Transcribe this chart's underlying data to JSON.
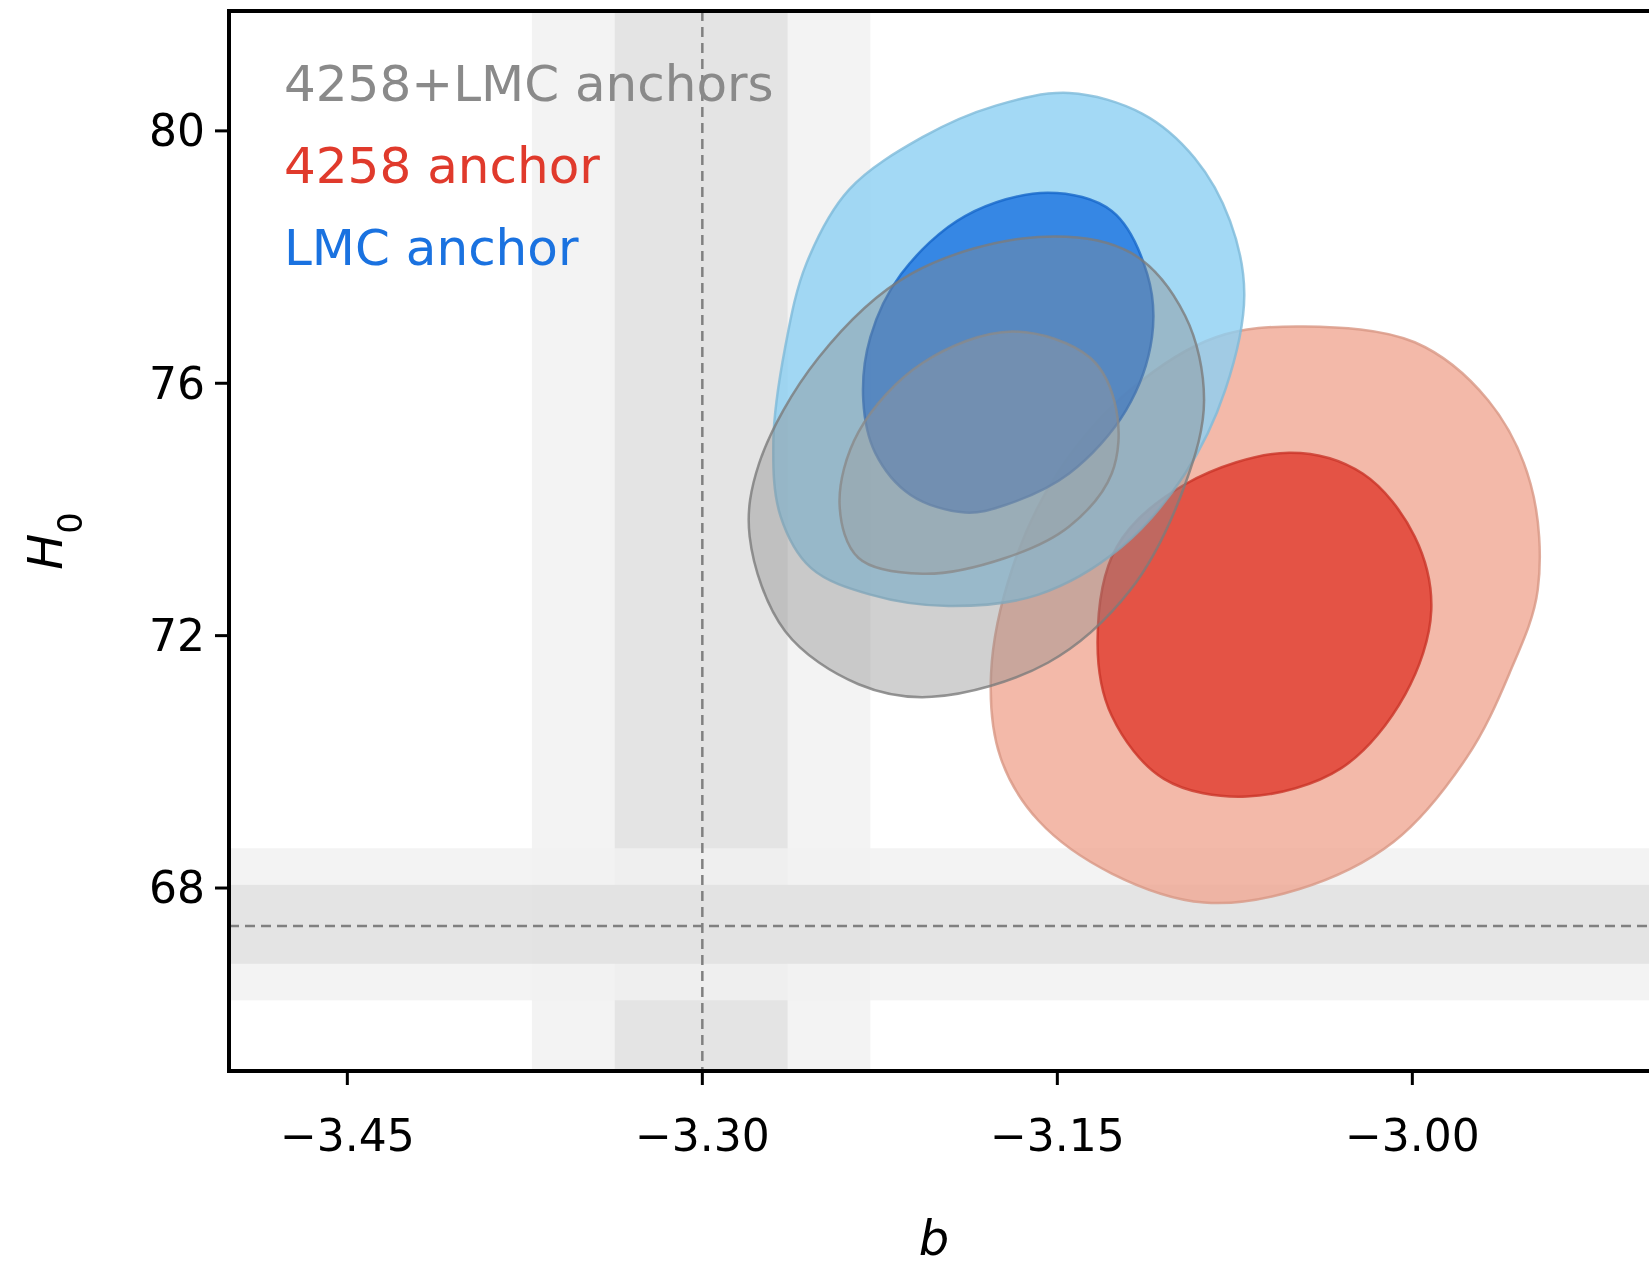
{
  "chart_data": {
    "type": "area",
    "xlabel": "b",
    "ylabel": "H$_{0}$",
    "xlim": [
      -3.5,
      -2.9
    ],
    "ylim": [
      65.1,
      81.9
    ],
    "xticks": [
      {
        "value": -3.45,
        "label": "−3.45"
      },
      {
        "value": -3.3,
        "label": "−3.30"
      },
      {
        "value": -3.15,
        "label": "−3.15"
      },
      {
        "value": -3.0,
        "label": "−3.00"
      }
    ],
    "yticks": [
      68,
      72,
      76,
      80
    ],
    "grid": false,
    "legend": "top left",
    "bands": [
      {
        "axis": "x",
        "from": -3.372,
        "to": -3.229,
        "color": "#f1f1f1"
      },
      {
        "axis": "x",
        "from": -3.337,
        "to": -3.264,
        "color": "#e0e0e0"
      },
      {
        "axis": "y",
        "from": 66.22,
        "to": 68.63,
        "color": "#f1f1f1"
      },
      {
        "axis": "y",
        "from": 66.8,
        "to": 68.05,
        "color": "#e0e0e0"
      }
    ],
    "ref_lines": [
      {
        "axis": "x",
        "value": -3.3,
        "color": "#808080",
        "line_style": "dashed"
      },
      {
        "axis": "y",
        "value": 67.4,
        "color": "#808080",
        "line_style": "dashed"
      }
    ],
    "series": [
      {
        "name": "4258+LMC anchors",
        "color": "#8a8a8a",
        "x": [
          -3.158,
          -3.119,
          -3.096,
          -3.088,
          -3.096,
          -3.119,
          -3.154,
          -3.203,
          -3.234,
          -3.265,
          -3.28,
          -3.276,
          -3.251,
          -3.212,
          -3.158
        ],
        "values": [
          78.32,
          78.07,
          77.07,
          75.73,
          74.4,
          72.73,
          71.57,
          71.03,
          71.23,
          72.07,
          73.57,
          74.73,
          76.4,
          77.73,
          78.32
        ]
      },
      {
        "color": "#9a9a9a",
        "x": [
          -3.169,
          -3.136,
          -3.125,
          -3.127,
          -3.145,
          -3.172,
          -3.207,
          -3.234,
          -3.242,
          -3.234,
          -3.207,
          -3.169
        ],
        "values": [
          76.82,
          76.4,
          75.57,
          74.57,
          73.73,
          73.23,
          72.98,
          73.23,
          74.07,
          75.23,
          76.32,
          76.82
        ]
      },
      {
        "color": "#f0a894",
        "x": [
          -3.046,
          -2.999,
          -2.968,
          -2.95,
          -2.947,
          -2.959,
          -2.977,
          -3.008,
          -3.048,
          -3.088,
          -3.127,
          -3.158,
          -3.174,
          -3.178,
          -3.169,
          -3.15,
          -3.119,
          -3.083,
          -3.046
        ],
        "values": [
          76.9,
          76.65,
          75.73,
          74.4,
          72.73,
          71.4,
          70.07,
          68.73,
          67.98,
          67.77,
          68.23,
          69.07,
          70.07,
          71.4,
          73.07,
          74.57,
          75.9,
          76.73,
          76.9
        ]
      },
      {
        "name": "4258 anchor",
        "color": "#e03a2c",
        "x": [
          -3.052,
          -3.021,
          -2.999,
          -2.992,
          -3.003,
          -3.03,
          -3.07,
          -3.105,
          -3.127,
          -3.133,
          -3.125,
          -3.096,
          -3.052
        ],
        "values": [
          74.9,
          74.57,
          73.57,
          72.4,
          71.07,
          69.9,
          69.45,
          69.73,
          70.73,
          71.9,
          73.4,
          74.4,
          74.9
        ]
      },
      {
        "color": "#8ccff2",
        "x": [
          -3.145,
          -3.176,
          -3.207,
          -3.238,
          -3.256,
          -3.265,
          -3.27,
          -3.267,
          -3.254,
          -3.229,
          -3.196,
          -3.158,
          -3.123,
          -3.096,
          -3.079,
          -3.071,
          -3.077,
          -3.092,
          -3.114,
          -3.145
        ],
        "values": [
          80.6,
          80.4,
          79.9,
          79.07,
          77.9,
          76.57,
          75.07,
          73.9,
          73.07,
          72.65,
          72.47,
          72.65,
          73.4,
          74.57,
          75.9,
          77.4,
          78.57,
          79.57,
          80.27,
          80.6
        ]
      },
      {
        "name": "LMC anchor",
        "color": "#1a72e0",
        "x": [
          -3.154,
          -3.127,
          -3.112,
          -3.11,
          -3.121,
          -3.145,
          -3.172,
          -3.189,
          -3.212,
          -3.227,
          -3.232,
          -3.229,
          -3.216,
          -3.189,
          -3.154
        ],
        "values": [
          79.02,
          78.73,
          77.73,
          76.73,
          75.57,
          74.57,
          74.07,
          73.95,
          74.23,
          74.9,
          75.73,
          76.73,
          77.73,
          78.65,
          79.02
        ]
      }
    ]
  }
}
